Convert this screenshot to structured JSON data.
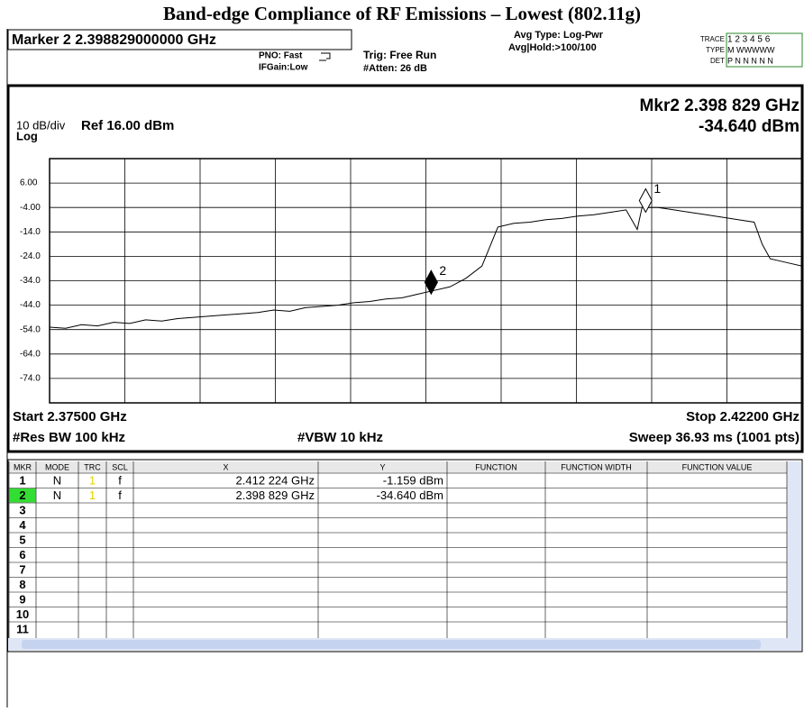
{
  "title": "Band-edge Compliance of RF Emissions – Lowest (802.11g)",
  "header": {
    "marker": "Marker 2 2.398829000000 GHz",
    "pno": "PNO: Fast",
    "ifgain": "IFGain:Low",
    "trig": "Trig: Free Run",
    "atten": "#Atten: 26 dB",
    "avg_type": "Avg Type: Log-Pwr",
    "avg_hold": "Avg|Hold:>100/100",
    "trace_label": "TRACE",
    "trace_nums": "1 2 3 4 5 6",
    "type_label": "TYPE",
    "type_vals": "M WWWWW",
    "det_label": "DET",
    "det_vals": "P N N N N N"
  },
  "plot": {
    "mkr_readout": "Mkr2 2.398 829 GHz",
    "mkr_value": "-34.640 dBm",
    "scale": "10 dB/div",
    "ref": "Ref 16.00 dBm",
    "log": "Log",
    "start": "Start 2.37500 GHz",
    "stop": "Stop 2.42200 GHz",
    "rbw": "#Res BW 100 kHz",
    "vbw": "#VBW 10 kHz",
    "sweep": "Sweep  36.93 ms (1001 pts)"
  },
  "chart_data": {
    "type": "line",
    "color": "#000000",
    "x": [
      2.375,
      2.376,
      2.377,
      2.378,
      2.379,
      2.38,
      2.381,
      2.382,
      2.383,
      2.384,
      2.385,
      2.386,
      2.387,
      2.388,
      2.389,
      2.39,
      2.391,
      2.392,
      2.393,
      2.394,
      2.395,
      2.396,
      2.397,
      2.398,
      2.399,
      2.4,
      2.401,
      2.402,
      2.403,
      2.404,
      2.405,
      2.406,
      2.407,
      2.408,
      2.409,
      2.41,
      2.411,
      2.4117,
      2.412,
      2.413,
      2.414,
      2.415,
      2.416,
      2.417,
      2.418,
      2.419,
      2.4195,
      2.42,
      2.421,
      2.422
    ],
    "values": [
      -53,
      -53.5,
      -52,
      -52.5,
      -51,
      -51.5,
      -50,
      -50.5,
      -49.5,
      -49,
      -48.5,
      -48,
      -47.5,
      -47,
      -46,
      -46.5,
      -45,
      -44.5,
      -44,
      -43,
      -42.5,
      -41.5,
      -41,
      -39.5,
      -38,
      -36.5,
      -33,
      -28,
      -12,
      -10.5,
      -10,
      -9,
      -8.5,
      -7.5,
      -7,
      -6,
      -5,
      -13,
      -4,
      -4,
      -5,
      -6,
      -7,
      -8,
      -9,
      -10,
      -19,
      -25,
      -26.5,
      -28
    ],
    "xlim": [
      2.375,
      2.422
    ],
    "ylim": [
      -84,
      16
    ],
    "yticks": [
      {
        "value": 6,
        "label": "6.00"
      },
      {
        "value": -4,
        "label": "-4.00"
      },
      {
        "value": -14,
        "label": "-14.0"
      },
      {
        "value": -24,
        "label": "-24.0"
      },
      {
        "value": -34,
        "label": "-34.0"
      },
      {
        "value": -44,
        "label": "-44.0"
      },
      {
        "value": -54,
        "label": "-54.0"
      },
      {
        "value": -64,
        "label": "-64.0"
      },
      {
        "value": -74,
        "label": "-74.0"
      }
    ],
    "grid": true,
    "markers": [
      {
        "label": "1",
        "x": 2.412224,
        "y": -1.159
      },
      {
        "label": "2",
        "x": 2.398829,
        "y": -34.64
      }
    ]
  },
  "table": {
    "headers": [
      "MKR",
      "MODE",
      "TRC",
      "SCL",
      "X",
      "Y",
      "FUNCTION",
      "FUNCTION WIDTH",
      "FUNCTION VALUE"
    ],
    "rows": [
      [
        "1",
        "N",
        "1",
        "f",
        "2.412 224 GHz",
        "-1.159 dBm"
      ],
      [
        "2",
        "N",
        "1",
        "f",
        "2.398 829 GHz",
        "-34.640 dBm"
      ],
      [
        "3"
      ],
      [
        "4"
      ],
      [
        "5"
      ],
      [
        "6"
      ],
      [
        "7"
      ],
      [
        "8"
      ],
      [
        "9"
      ],
      [
        "10"
      ],
      [
        "11"
      ]
    ]
  }
}
